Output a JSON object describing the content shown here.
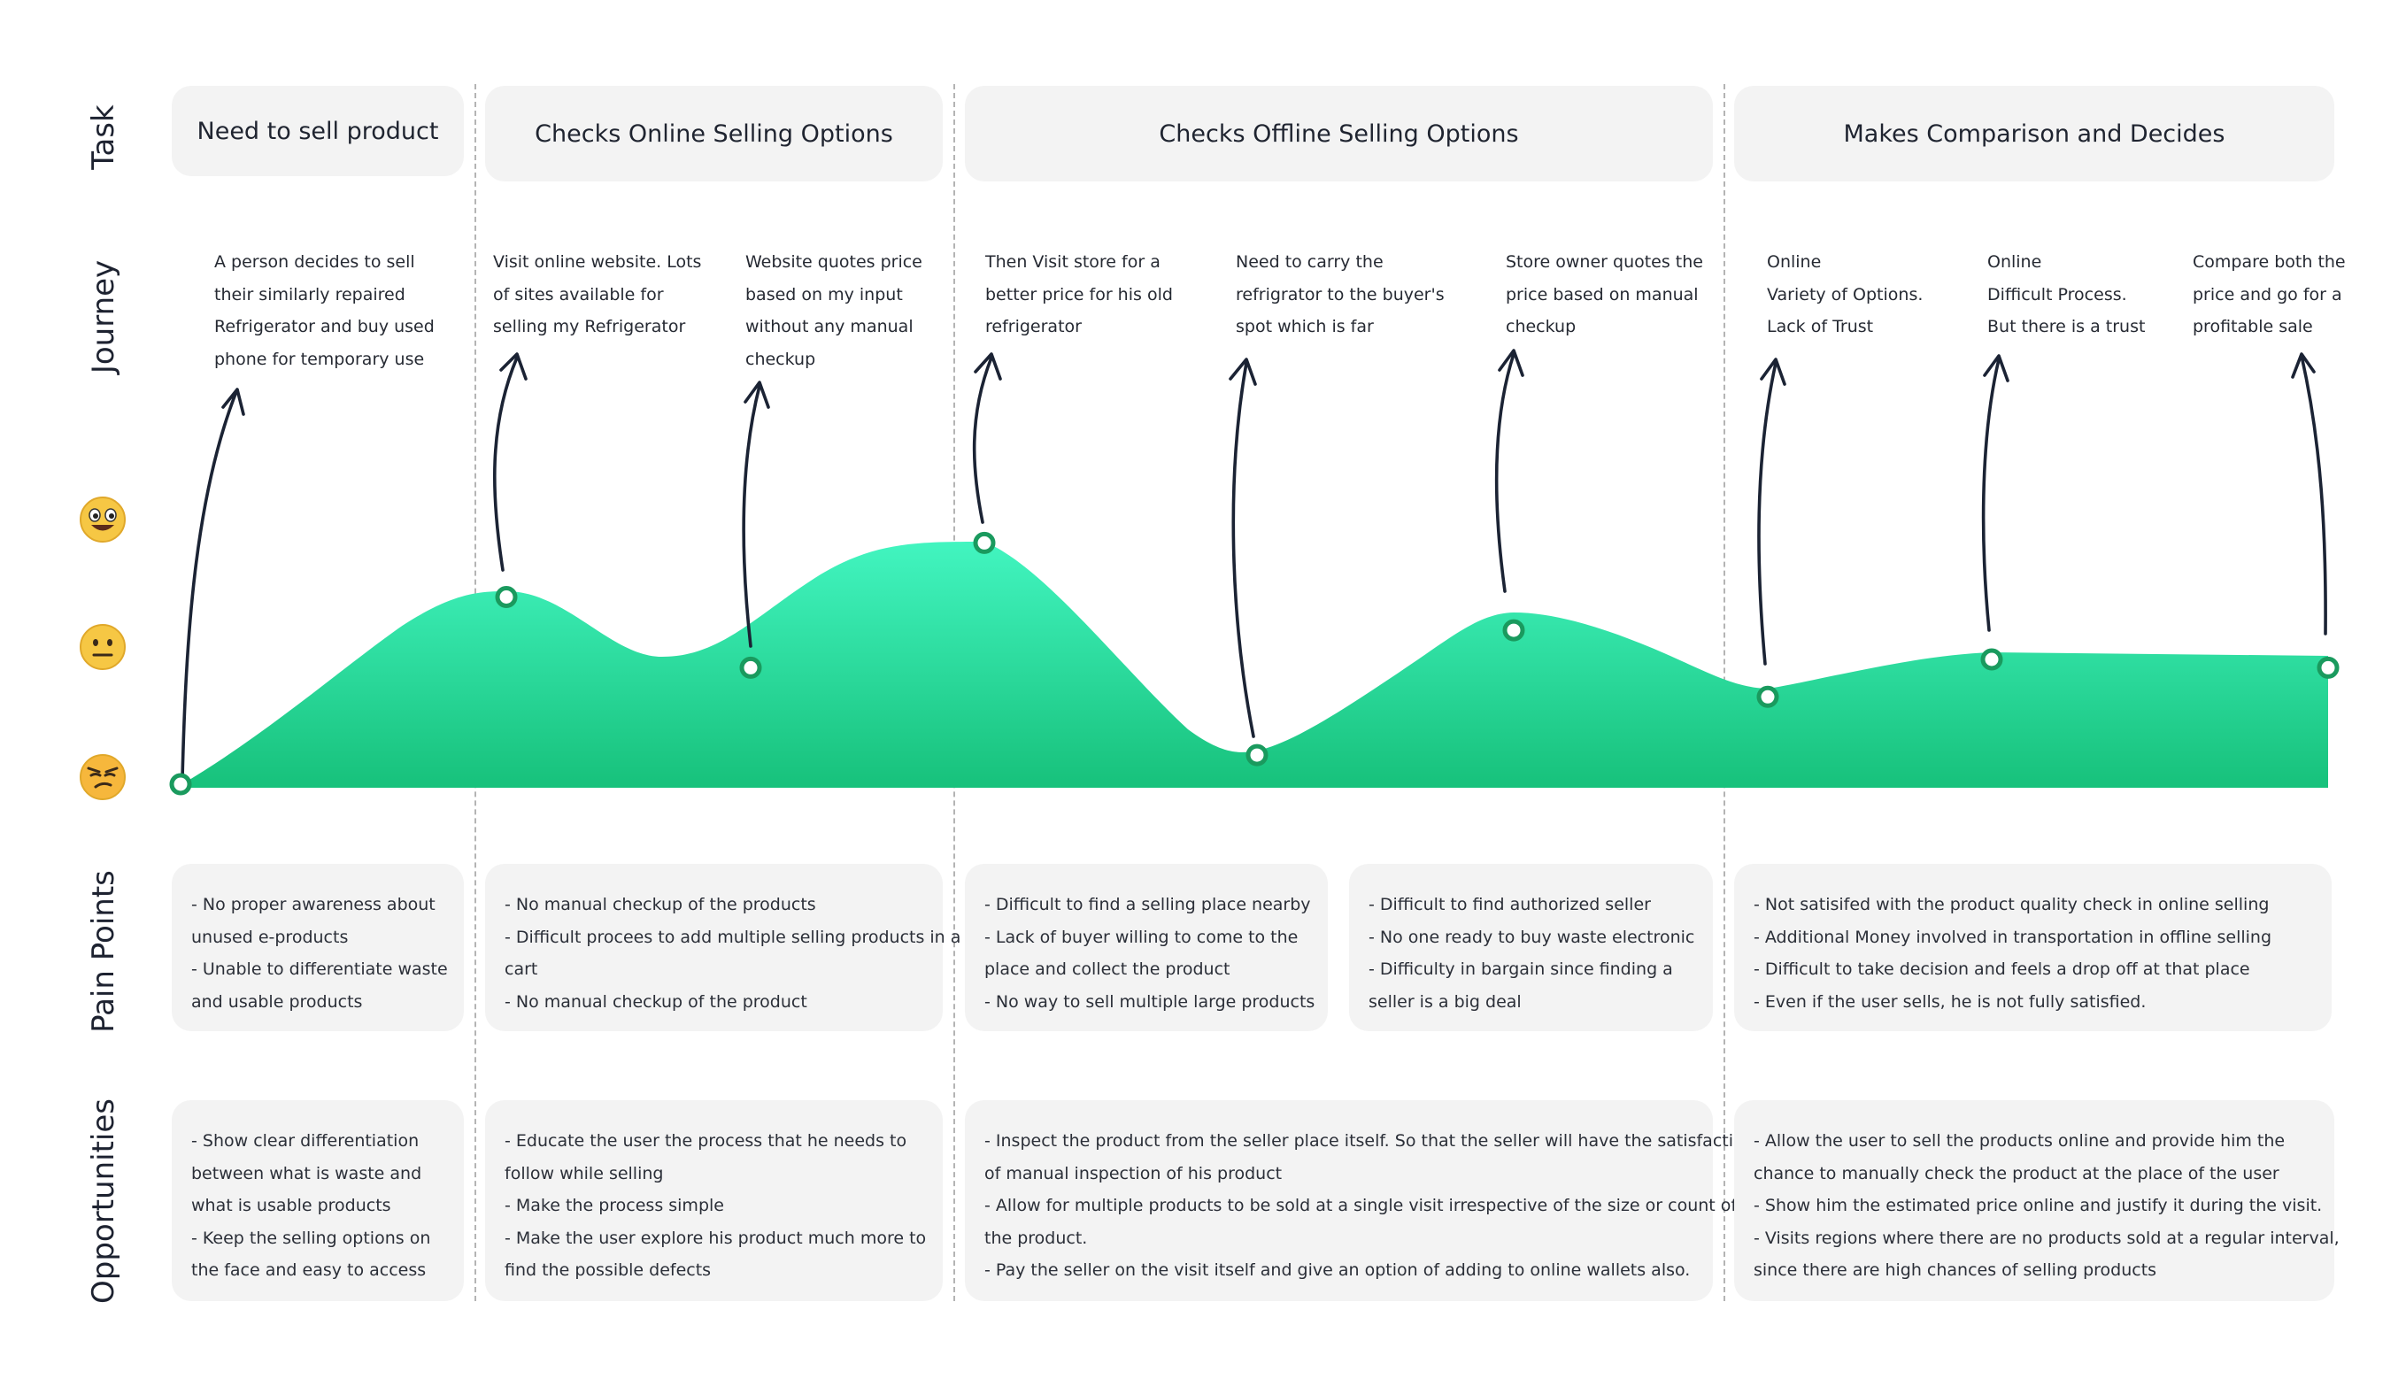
{
  "rows": {
    "task": "Task",
    "journey": "Journey",
    "pain_points": "Pain Points",
    "opportunities": "Opportunities"
  },
  "tasks": [
    "Need to sell product",
    "Checks Online Selling Options",
    "Checks Offline Selling Options",
    "Makes Comparison and Decides"
  ],
  "journey": [
    {
      "lines": [
        "A person decides to sell",
        "their similarly repaired",
        "Refrigerator and buy used",
        "phone for temporary use"
      ],
      "emotion": 0.0
    },
    {
      "lines": [
        "Visit online website. Lots",
        "of sites available for",
        "selling my Refrigerator"
      ],
      "emotion": 0.45
    },
    {
      "lines": [
        "Website quotes price",
        "based on my input",
        "without any manual",
        "checkup"
      ],
      "emotion": 0.28
    },
    {
      "lines": [
        "Then Visit store for a",
        "better price for his old",
        "refrigerator"
      ],
      "emotion": 0.58
    },
    {
      "lines": [
        "Need to carry the",
        "refrigrator to the buyer's",
        "spot which is far"
      ],
      "emotion": 0.07
    },
    {
      "lines": [
        "Store owner quotes the",
        "price based on manual",
        "checkup"
      ],
      "emotion": 0.37
    },
    {
      "lines": [
        "Online",
        "Variety of Options.",
        "Lack of Trust"
      ],
      "emotion": 0.21
    },
    {
      "lines": [
        "Online",
        "Difficult Process.",
        "But there is a trust"
      ],
      "emotion": 0.3
    },
    {
      "lines": [
        "Compare both the",
        "price and go for a",
        "profitable sale"
      ],
      "emotion": 0.28
    }
  ],
  "pain_points": [
    {
      "lines": [
        "- No proper awareness about",
        "unused e-products",
        "- Unable to differentiate waste",
        "and usable products"
      ]
    },
    {
      "lines": [
        "- No manual checkup of the products",
        "- Difficult procees to add multiple selling products in a",
        "cart",
        "- No manual checkup of the product"
      ]
    },
    {
      "lines": [
        "- Difficult to find a selling place nearby",
        "- Lack of buyer willing to come to the",
        "place and collect the product",
        "- No way to sell multiple large products"
      ]
    },
    {
      "lines": [
        "- Difficult to find authorized seller",
        "- No one ready to buy waste electronic",
        "- Difficulty in bargain since finding a",
        "seller is a big deal"
      ]
    },
    {
      "lines": [
        "- Not satisifed with the product quality check in online selling",
        "- Additional Money involved in transportation in offline selling",
        "- Difficult to take decision and feels a drop off at that place",
        "- Even if the user sells, he is not fully satisfied."
      ]
    }
  ],
  "opportunities": [
    {
      "lines": [
        "- Show clear differentiation",
        "between what is waste and",
        "what is usable products",
        "- Keep the selling options on",
        "the face and easy to access"
      ]
    },
    {
      "lines": [
        "- Educate the user the process that he needs to",
        "follow while selling",
        "- Make the process simple",
        "- Make the user explore his product much more to",
        "find the possible defects"
      ]
    },
    {
      "lines": [
        "- Inspect the product from the seller place itself. So that the seller will have the satisfaction",
        "of manual inspection of his product",
        "- Allow for multiple products to be sold at a single visit irrespective of the size or count of",
        "the product.",
        "- Pay the seller on the visit itself and give an option of adding to online wallets also."
      ]
    },
    {
      "lines": [
        "- Allow the user to sell the products online and provide him the",
        "chance to manually check the product at the place of the user",
        "- Show him the estimated price online and justify it during the visit.",
        "- Visits regions where there are no products sold at a regular interval,",
        "since there are high chances of selling products"
      ]
    }
  ],
  "emotions": [
    "happy-face-icon",
    "neutral-face-icon",
    "annoyed-face-icon"
  ],
  "colors": {
    "curve_top": "#42f5c0",
    "curve_bottom": "#17c17b",
    "marker": "#1a9a5e",
    "arrow": "#1b2334",
    "card": "#f3f3f3"
  }
}
